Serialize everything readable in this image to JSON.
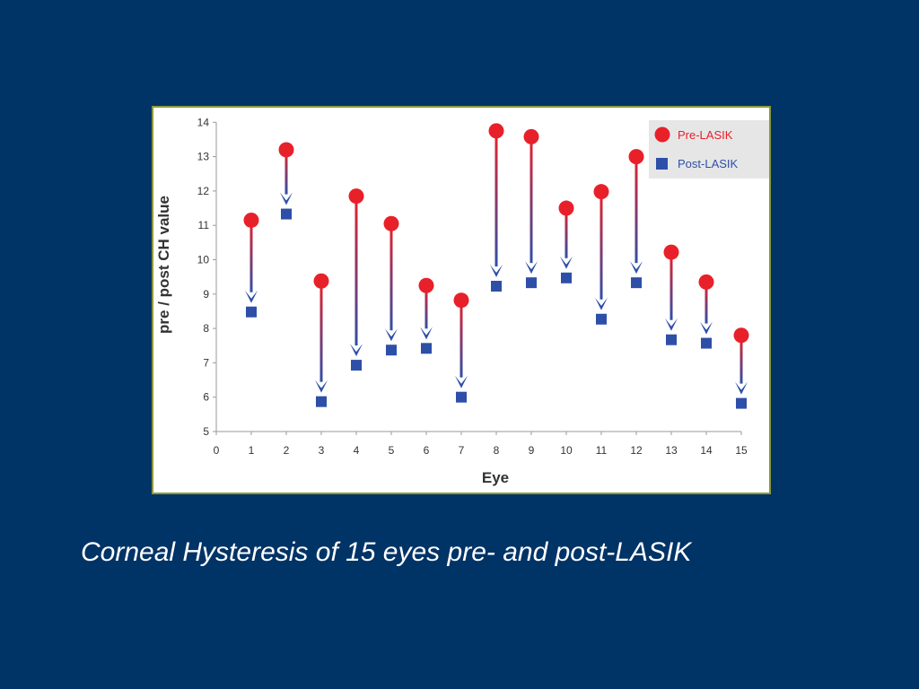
{
  "caption": "Corneal Hysteresis of 15 eyes pre- and post-LASIK",
  "colors": {
    "background": "#003366",
    "pre": "#e8202a",
    "post": "#2e4fa8",
    "legend_bg": "#e6e6e6",
    "legend_pre_text": "#e8202a",
    "legend_post_text": "#2e4fa8"
  },
  "chart_data": {
    "type": "scatter",
    "title": "",
    "xlabel": "Eye",
    "ylabel": "pre / post CH value",
    "xlim": [
      0,
      15
    ],
    "ylim": [
      5,
      14
    ],
    "x_ticks": [
      0,
      1,
      2,
      3,
      4,
      5,
      6,
      7,
      8,
      9,
      10,
      11,
      12,
      13,
      14,
      15
    ],
    "y_ticks": [
      5,
      6,
      7,
      8,
      9,
      10,
      11,
      12,
      13,
      14
    ],
    "grid": false,
    "legend_position": "top-right",
    "arrows": "pre to post",
    "x": [
      1,
      2,
      3,
      4,
      5,
      6,
      7,
      8,
      9,
      10,
      11,
      12,
      13,
      14,
      15
    ],
    "series": [
      {
        "name": "Pre-LASIK",
        "marker": "circle",
        "values": [
          11.15,
          13.2,
          9.38,
          11.85,
          11.05,
          9.25,
          8.82,
          13.75,
          13.58,
          11.5,
          11.98,
          13.0,
          10.22,
          9.35,
          7.8
        ]
      },
      {
        "name": "Post-LASIK",
        "marker": "square",
        "values": [
          8.48,
          11.33,
          5.87,
          6.93,
          7.37,
          7.42,
          6.0,
          9.23,
          9.33,
          9.47,
          8.27,
          9.33,
          7.67,
          7.57,
          5.82
        ]
      }
    ]
  }
}
